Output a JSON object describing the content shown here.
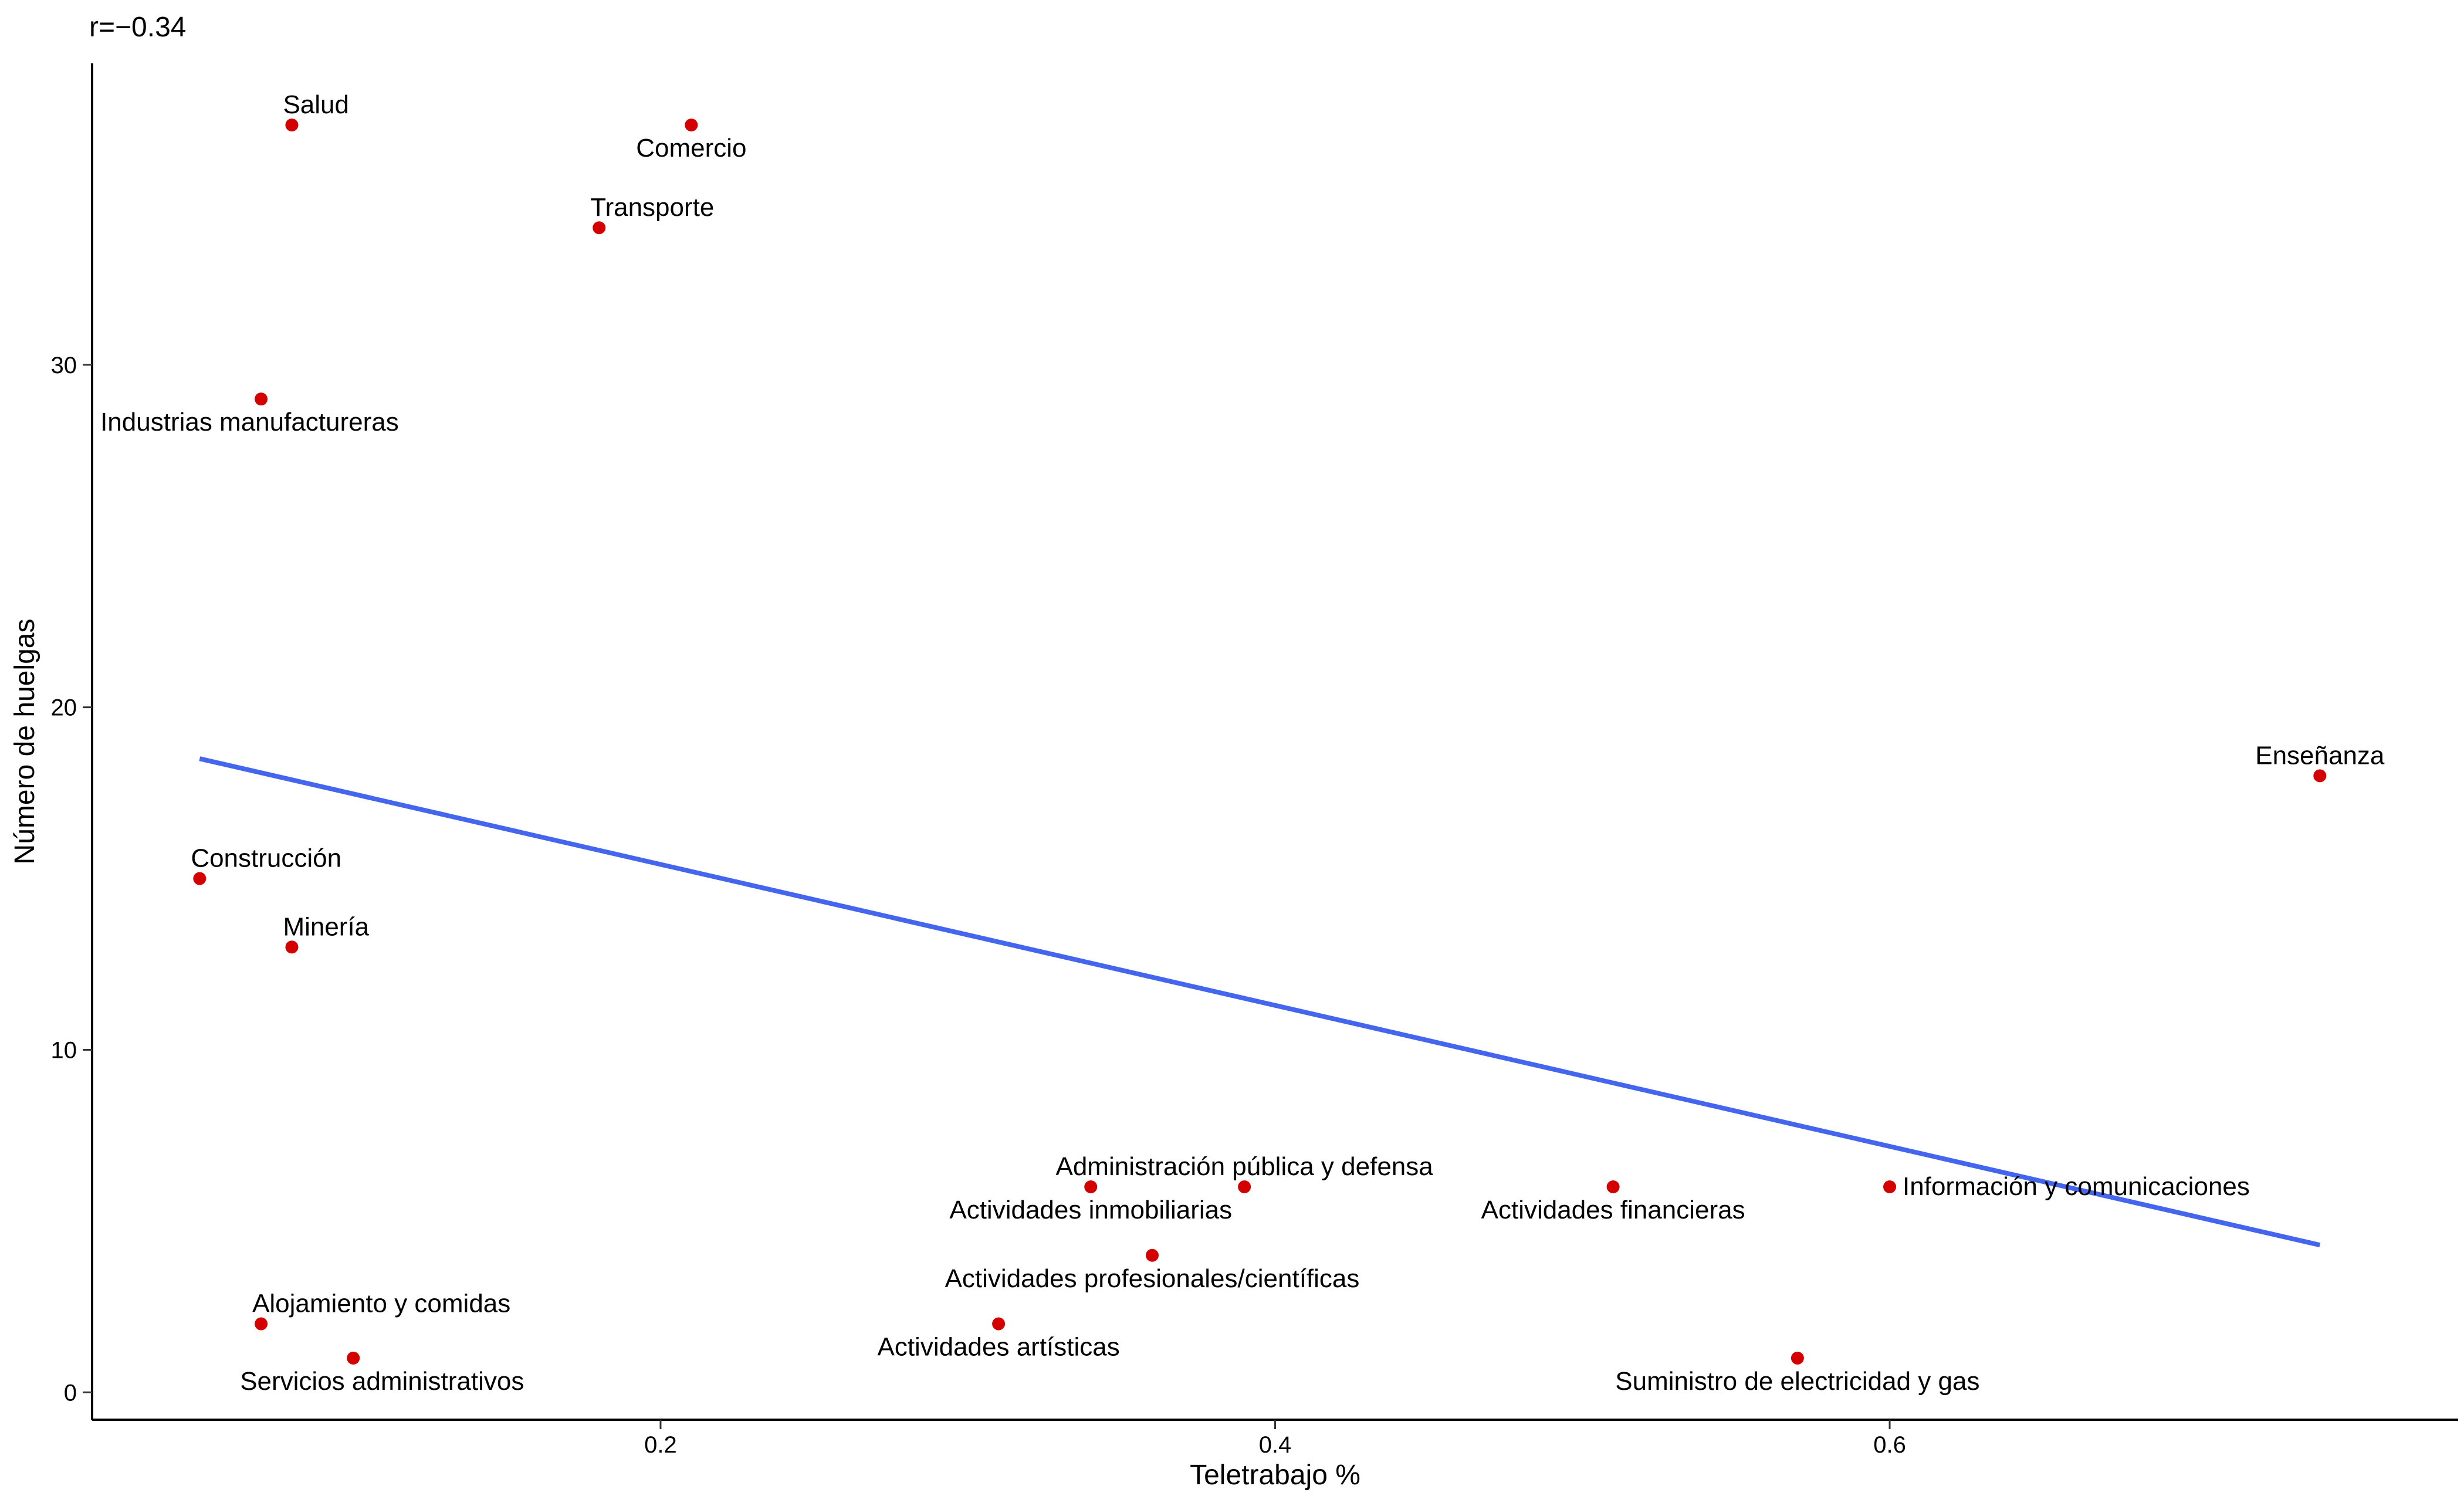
{
  "chart_data": {
    "type": "scatter",
    "annotation": "r=−0.34",
    "xlabel": "Teletrabajo %",
    "ylabel": "Número de huelgas",
    "xlim": [
      0.015,
      0.785
    ],
    "ylim": [
      -0.8,
      38.8
    ],
    "x_ticks": [
      {
        "value": 0.2,
        "label": "0.2"
      },
      {
        "value": 0.4,
        "label": "0.4"
      },
      {
        "value": 0.6,
        "label": "0.6"
      }
    ],
    "y_ticks": [
      {
        "value": 0,
        "label": "0"
      },
      {
        "value": 10,
        "label": "10"
      },
      {
        "value": 20,
        "label": "20"
      },
      {
        "value": 30,
        "label": "30"
      }
    ],
    "grid": false,
    "legend": "none",
    "point_color": "#d40000",
    "line_color": "#4466ee",
    "trend_line": {
      "x": [
        0.05,
        0.74
      ],
      "y": [
        18.5,
        4.3
      ]
    },
    "points": [
      {
        "label": "Salud",
        "x": 0.08,
        "y": 37,
        "label_pos": "above-right"
      },
      {
        "label": "Comercio",
        "x": 0.21,
        "y": 37,
        "label_pos": "below"
      },
      {
        "label": "Transporte",
        "x": 0.18,
        "y": 34,
        "label_pos": "above-right"
      },
      {
        "label": "Industrias manufactureras",
        "x": 0.07,
        "y": 29,
        "label_pos": "below-left"
      },
      {
        "label": "Enseñanza",
        "x": 0.74,
        "y": 18,
        "label_pos": "above"
      },
      {
        "label": "Construcción",
        "x": 0.05,
        "y": 15,
        "label_pos": "above-right"
      },
      {
        "label": "Minería",
        "x": 0.08,
        "y": 13,
        "label_pos": "above-right"
      },
      {
        "label": "Administración pública y defensa",
        "x": 0.39,
        "y": 6,
        "label_pos": "above"
      },
      {
        "label": "Actividades inmobiliarias",
        "x": 0.34,
        "y": 6,
        "label_pos": "below"
      },
      {
        "label": "Actividades financieras",
        "x": 0.51,
        "y": 6,
        "label_pos": "below"
      },
      {
        "label": "Información y comunicaciones",
        "x": 0.6,
        "y": 6,
        "label_pos": "right"
      },
      {
        "label": "Actividades profesionales/científicas",
        "x": 0.36,
        "y": 4,
        "label_pos": "below"
      },
      {
        "label": "Alojamiento y comidas",
        "x": 0.07,
        "y": 2,
        "label_pos": "above-right"
      },
      {
        "label": "Actividades artísticas",
        "x": 0.31,
        "y": 2,
        "label_pos": "below"
      },
      {
        "label": "Servicios administrativos",
        "x": 0.1,
        "y": 1,
        "label_pos": "below-right"
      },
      {
        "label": "Suministro de electricidad y gas",
        "x": 0.57,
        "y": 1,
        "label_pos": "below"
      }
    ]
  }
}
